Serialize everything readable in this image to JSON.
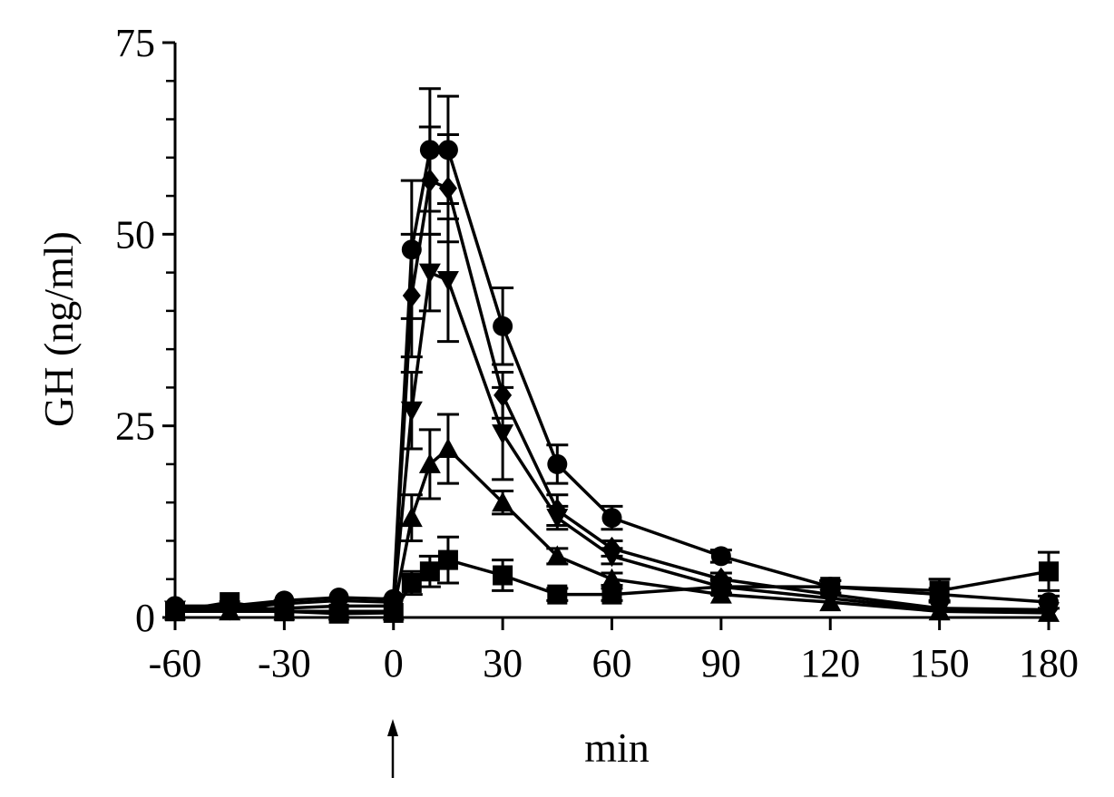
{
  "chart_data": {
    "type": "line",
    "title": "",
    "xlabel": "min",
    "ylabel": "GH (ng/ml)",
    "xlim": [
      -60,
      180
    ],
    "ylim": [
      0,
      75
    ],
    "x_ticks": [
      -60,
      -30,
      0,
      30,
      60,
      90,
      120,
      150,
      180
    ],
    "x_tick_labels": [
      "-60",
      "-30",
      "0",
      "30",
      "60",
      "90",
      "120",
      "150",
      "180"
    ],
    "y_ticks": [
      0,
      25,
      50,
      75
    ],
    "y_tick_labels": [
      "0",
      "25",
      "50",
      "75"
    ],
    "y_minor_ticks": [
      5,
      10,
      15,
      20,
      30,
      35,
      40,
      45,
      55,
      60,
      65,
      70
    ],
    "grid": false,
    "legend": null,
    "annotations": [
      {
        "type": "arrow",
        "x": 0,
        "position": "below x-axis",
        "meaning": "injection time"
      }
    ],
    "x": [
      -60,
      -45,
      -30,
      -15,
      0,
      5,
      10,
      15,
      30,
      45,
      60,
      90,
      120,
      150,
      180
    ],
    "series": [
      {
        "name": "circle",
        "marker": "circle",
        "values": [
          1.5,
          1.5,
          2.2,
          2.6,
          2.4,
          48,
          61,
          61,
          38,
          20,
          13,
          8,
          4,
          3,
          2
        ],
        "errors": [
          0.5,
          0.5,
          0.5,
          0.5,
          0.5,
          9,
          8,
          7,
          5,
          2.5,
          1.5,
          0.8,
          0.8,
          0.8,
          0.8
        ]
      },
      {
        "name": "diamond",
        "marker": "diamond",
        "values": [
          1.2,
          1.2,
          1.8,
          2.2,
          2.0,
          42,
          57,
          56,
          29,
          14,
          9,
          5,
          3,
          1.2,
          1.0
        ],
        "errors": [
          0.4,
          0.4,
          0.4,
          0.4,
          0.4,
          8,
          7,
          7,
          3,
          2,
          1,
          0.8,
          0.6,
          0.5,
          0.5
        ]
      },
      {
        "name": "triangle-down",
        "marker": "triangle-down",
        "values": [
          1.0,
          1.0,
          1.2,
          1.5,
          1.5,
          27,
          45,
          44,
          24,
          13,
          8,
          4,
          2.5,
          1.0,
          0.8
        ],
        "errors": [
          0.4,
          0.4,
          0.4,
          0.4,
          0.4,
          5,
          5,
          8,
          6,
          1.5,
          1,
          0.8,
          0.5,
          0.4,
          0.4
        ]
      },
      {
        "name": "triangle-up",
        "marker": "triangle-up",
        "values": [
          0.8,
          0.8,
          0.8,
          0.8,
          0.8,
          13,
          20,
          22,
          15,
          8,
          5,
          3,
          2,
          0.8,
          0.6
        ],
        "errors": [
          0.3,
          0.3,
          0.3,
          0.3,
          0.3,
          3,
          4.5,
          4.5,
          1.5,
          1,
          0.8,
          0.5,
          0.4,
          0.3,
          0.3
        ]
      },
      {
        "name": "square",
        "marker": "square",
        "values": [
          0.8,
          2.0,
          0.8,
          0.5,
          0.6,
          4.5,
          6,
          7.5,
          5.5,
          3,
          3,
          4,
          4,
          3.5,
          6
        ],
        "errors": [
          0.3,
          0.5,
          0.3,
          0.3,
          0.3,
          1.5,
          2,
          3,
          2,
          0.8,
          0.8,
          1,
          0.8,
          1.5,
          2.5
        ]
      }
    ]
  }
}
